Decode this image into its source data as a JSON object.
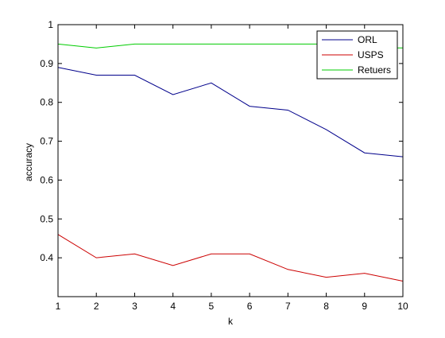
{
  "chart_data": {
    "type": "line",
    "title": "",
    "xlabel": "k",
    "ylabel": "accuracy",
    "x": [
      1,
      2,
      3,
      4,
      5,
      6,
      7,
      8,
      9,
      10
    ],
    "xlim": [
      1,
      10
    ],
    "ylim": [
      0.3,
      1
    ],
    "xticks": [
      1,
      2,
      3,
      4,
      5,
      6,
      7,
      8,
      9,
      10
    ],
    "yticks": [
      0.4,
      0.5,
      0.6,
      0.7,
      0.8,
      0.9,
      1
    ],
    "ytick_labels": [
      "0.4",
      "0.5",
      "0.6",
      "0.7",
      "0.8",
      "0.9",
      "1"
    ],
    "grid": false,
    "legend_position": "top-right",
    "series": [
      {
        "name": "ORL",
        "color": "#00008b",
        "values": [
          0.89,
          0.87,
          0.87,
          0.82,
          0.85,
          0.79,
          0.78,
          0.73,
          0.67,
          0.66
        ]
      },
      {
        "name": "USPS",
        "color": "#cc0000",
        "values": [
          0.46,
          0.4,
          0.41,
          0.38,
          0.41,
          0.41,
          0.37,
          0.35,
          0.36,
          0.34
        ]
      },
      {
        "name": "Retuers",
        "color": "#00cc00",
        "values": [
          0.95,
          0.94,
          0.95,
          0.95,
          0.95,
          0.95,
          0.95,
          0.95,
          0.94,
          0.94
        ]
      }
    ]
  }
}
